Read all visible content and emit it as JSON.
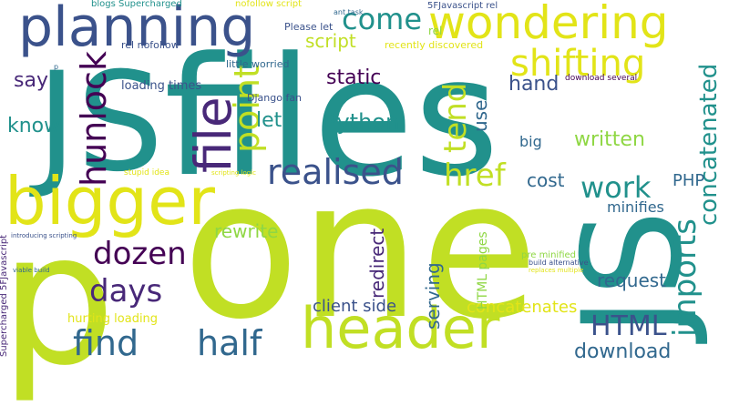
{
  "words": {
    "files": "files",
    "js": "JS",
    "one": "one",
    "p": "p",
    "js2": "JS",
    "planning": "planning",
    "wondering": "wondering",
    "bigger": "bigger",
    "header": "header",
    "file": "file",
    "hunlock": "hunlock",
    "point": "point",
    "realised": "realised",
    "href": "href",
    "shifting": "shifting",
    "come": "come",
    "script": "script",
    "tend": "tend",
    "imports": "imports",
    "work": "work",
    "dozen": "dozen",
    "days": "days",
    "find": "find",
    "half": "half",
    "html": "HTML",
    "concatenated": "concatenated",
    "python": "Python",
    "static": "static",
    "say": "say",
    "know": "know",
    "let": "let",
    "hand": "hand",
    "use": "use",
    "written": "written",
    "big": "big",
    "cost": "cost",
    "php": "PHP",
    "minifies": "minifies",
    "rewrite": "rewrite",
    "redirect": "redirect",
    "serving": "serving",
    "request": "request",
    "client_side": "client side",
    "concatenates": "concatenates",
    "download": "download",
    "html_pages": "HTML pages",
    "hurting_loading": "hurting loading",
    "loading_times": "loading times",
    "django_fan": "Django fan",
    "little_worried": "little worried",
    "rel_nofollow": "rel nofollow",
    "please_let": "Please let",
    "nofollow_script": "nofollow script",
    "blogs_supercharged": "blogs Supercharged",
    "fjavascript_rel": "5FJavascript rel",
    "ant_task": "ant task",
    "recently_discovered": "recently discovered",
    "download_several": "download several",
    "pre_minified": "pre minified",
    "build_alternative": "build alternative",
    "replaces_multiple": "replaces multiple",
    "stupid_idea": "stupid idea",
    "scripting_logic": "scripting logic",
    "introducing_scripting": "introducing scripting",
    "viable_build": "viable build",
    "supercharged_5fjavascript": "Supercharged 5FJavascript",
    "p_small": "p",
    "rel_small": "rel"
  }
}
